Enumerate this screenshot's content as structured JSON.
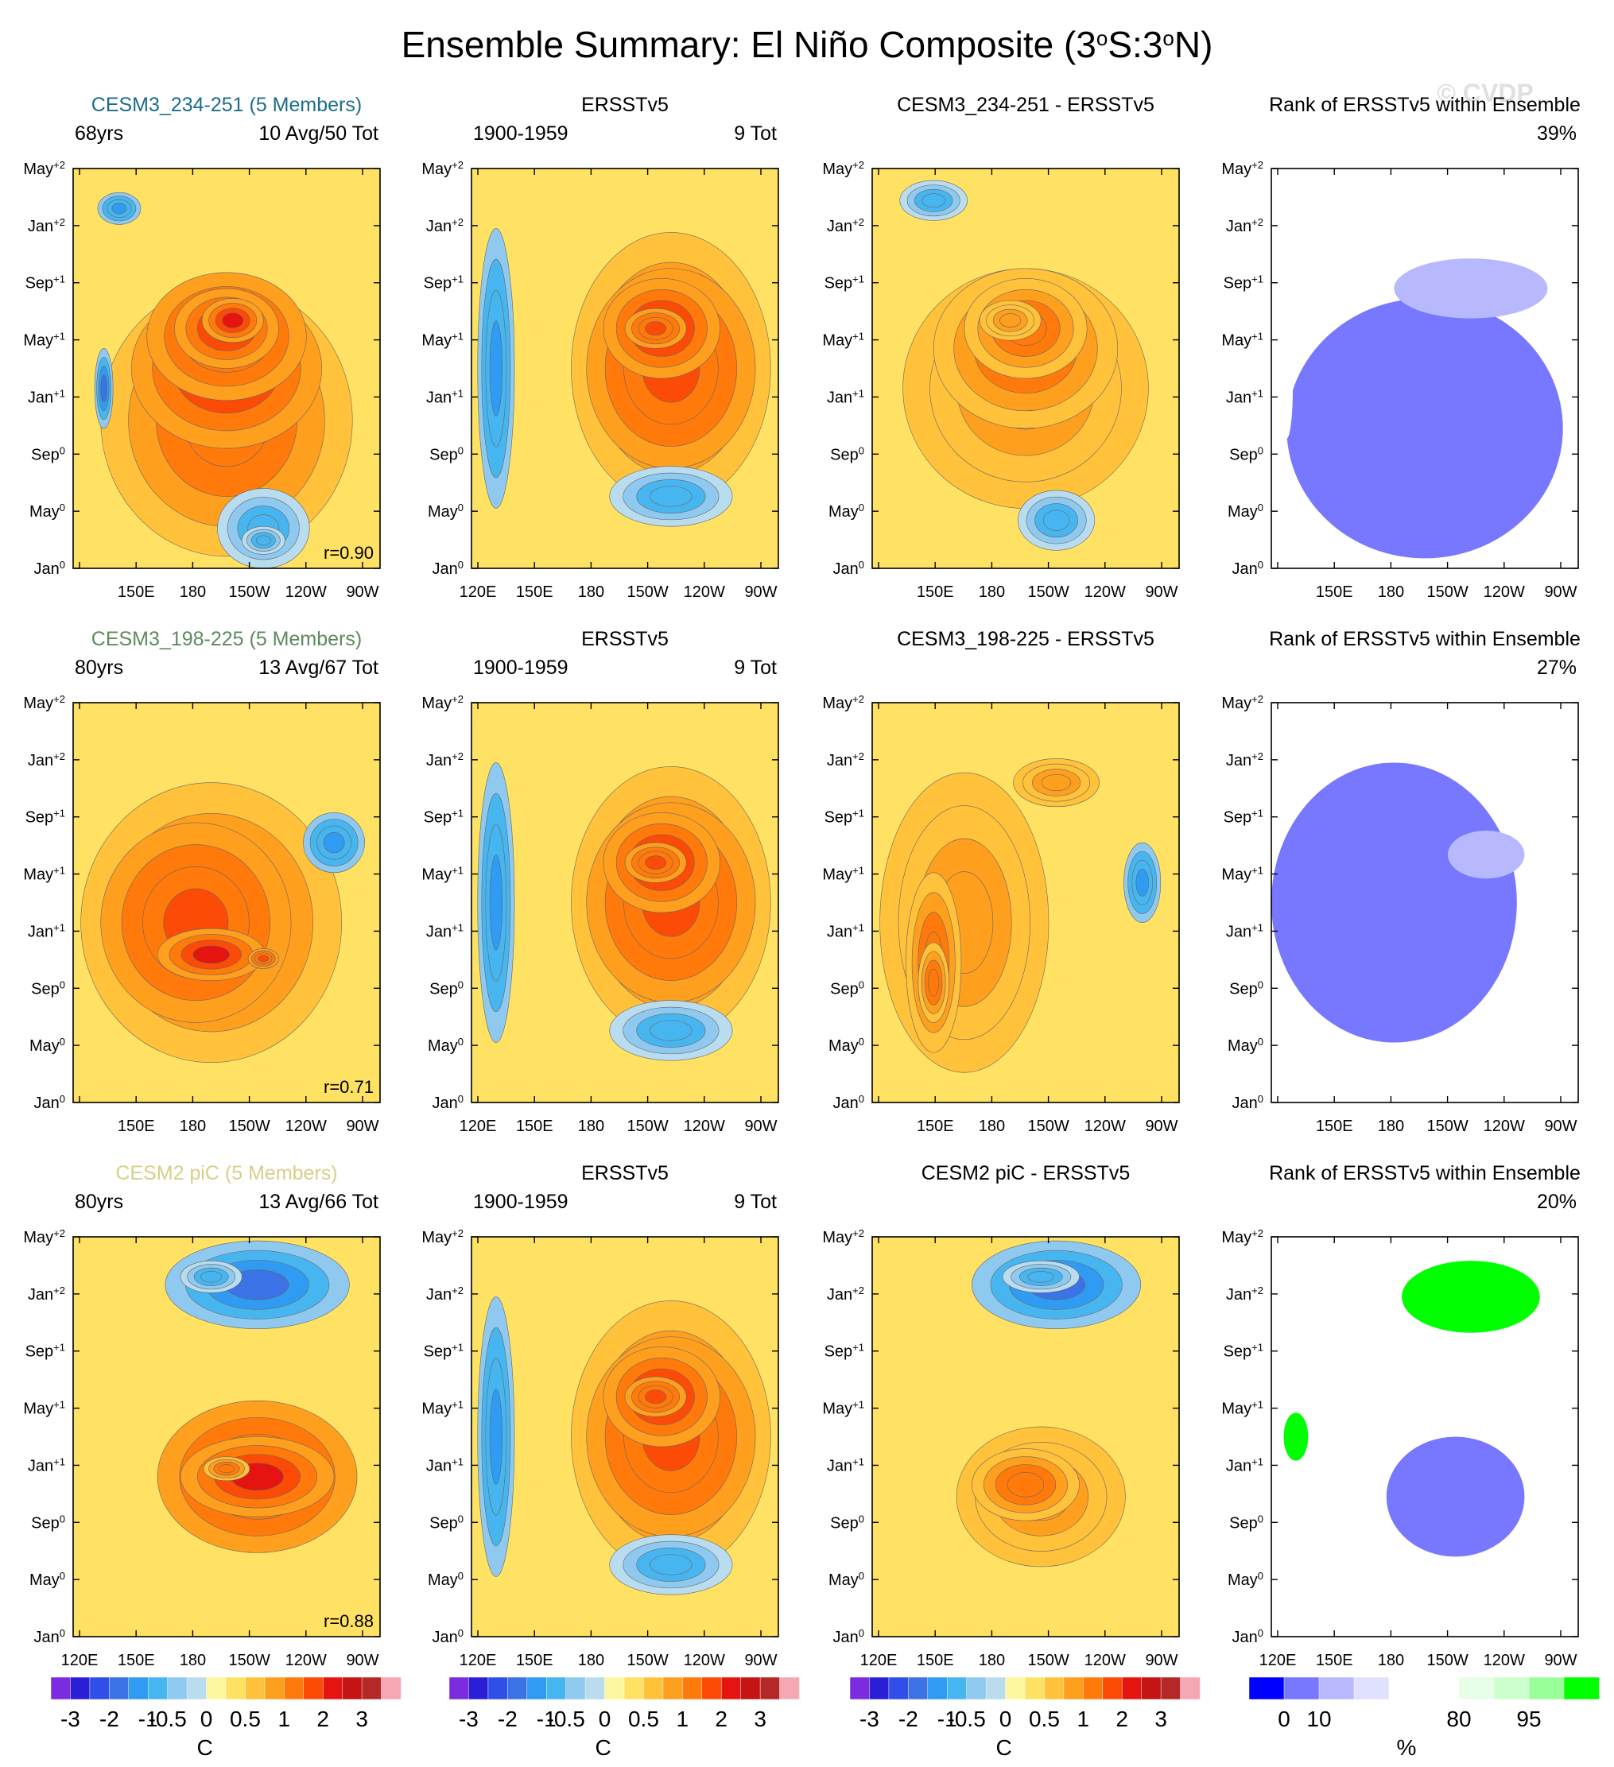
{
  "figure": {
    "title_prefix": "Ensemble Summary: El Niño Composite (3",
    "title_deg1": "o",
    "title_mid": "S:3",
    "title_deg2": "o",
    "title_suffix": "N)",
    "watermark": "© CVDP"
  },
  "colors": {
    "sst_levels": [
      "#7b2be0",
      "#2a1ed6",
      "#2f4fe8",
      "#3b72e6",
      "#2f9bf2",
      "#47b6f0",
      "#8fc9ef",
      "#b9dcee",
      "#fdf8a0",
      "#ffe264",
      "#ffc23a",
      "#ff9f1e",
      "#ff7a0a",
      "#fb4b06",
      "#e51410",
      "#c41414",
      "#b52828",
      "#f5a8b3"
    ],
    "rank_levels": [
      "#0000ff",
      "#7777ff",
      "#b8b8ff",
      "#e0e0ff",
      "#ffffff",
      "#ffffff",
      "#e6ffe6",
      "#ccffcc",
      "#99ff99",
      "#00ff00"
    ]
  },
  "chart_data": [
    {
      "type": "heatmap",
      "row": 1,
      "col": 1,
      "header_center": "CESM3_234-251 (5 Members)",
      "header_color": "#1b6d8d",
      "left_label": "68yrs",
      "right_label": "10 Avg/50 Tot",
      "annotation": "r=0.90",
      "y_ticks": [
        "May+2",
        "Jan+2",
        "Sep+1",
        "May+1",
        "Jan+1",
        "Sep0",
        "May0",
        "Jan0"
      ],
      "x_ticks": [
        "",
        "150E",
        "180",
        "150W",
        "120W",
        "90W"
      ],
      "blobs": [
        {
          "cx": 0.5,
          "cy": 0.37,
          "rx": 0.82,
          "ry": 0.68,
          "v": 0.4
        },
        {
          "cx": 0.5,
          "cy": 0.5,
          "rx": 0.62,
          "ry": 0.4,
          "v": 0.6
        },
        {
          "cx": 0.5,
          "cy": 0.58,
          "rx": 0.52,
          "ry": 0.32,
          "v": 0.5
        },
        {
          "cx": 0.5,
          "cy": 0.6,
          "rx": 0.34,
          "ry": 0.2,
          "v": 0.6
        },
        {
          "cx": 0.52,
          "cy": 0.62,
          "rx": 0.2,
          "ry": 0.11,
          "v": 0.6
        },
        {
          "cx": 0.62,
          "cy": 0.1,
          "rx": 0.3,
          "ry": 0.2,
          "v": -0.4
        },
        {
          "cx": 0.62,
          "cy": 0.07,
          "rx": 0.14,
          "ry": 0.07,
          "v": -0.4
        },
        {
          "cx": 0.1,
          "cy": 0.45,
          "rx": 0.06,
          "ry": 0.2,
          "v": -0.6
        },
        {
          "cx": 0.15,
          "cy": 0.9,
          "rx": 0.14,
          "ry": 0.08,
          "v": -0.5
        }
      ]
    },
    {
      "type": "heatmap",
      "row": 1,
      "col": 2,
      "header_center": "ERSSTv5",
      "header_color": "#000000",
      "left_label": "1900-1959",
      "right_label": "9 Tot",
      "annotation": "",
      "y_ticks": [
        "May+2",
        "Jan+2",
        "Sep+1",
        "May+1",
        "Jan+1",
        "Sep0",
        "May0",
        "Jan0"
      ],
      "x_ticks": [
        "120E",
        "150E",
        "180",
        "150W",
        "120W",
        "90W"
      ],
      "blobs": [
        {
          "cx": 0.08,
          "cy": 0.5,
          "rx": 0.12,
          "ry": 0.7,
          "v": -0.5
        },
        {
          "cx": 0.65,
          "cy": 0.5,
          "rx": 0.65,
          "ry": 0.68,
          "v": 0.4
        },
        {
          "cx": 0.65,
          "cy": 0.5,
          "rx": 0.55,
          "ry": 0.5,
          "v": 0.5
        },
        {
          "cx": 0.62,
          "cy": 0.6,
          "rx": 0.38,
          "ry": 0.25,
          "v": 0.6
        },
        {
          "cx": 0.6,
          "cy": 0.6,
          "rx": 0.2,
          "ry": 0.1,
          "v": 0.5
        },
        {
          "cx": 0.65,
          "cy": 0.18,
          "rx": 0.4,
          "ry": 0.15,
          "v": -0.4
        }
      ]
    },
    {
      "type": "heatmap",
      "row": 1,
      "col": 3,
      "header_center": "CESM3_234-251 - ERSSTv5",
      "header_color": "#000000",
      "left_label": "",
      "right_label": "",
      "annotation": "",
      "y_ticks": [
        "May+2",
        "Jan+2",
        "Sep+1",
        "May+1",
        "Jan+1",
        "Sep0",
        "May0",
        "Jan0"
      ],
      "x_ticks": [
        "",
        "150E",
        "180",
        "150W",
        "120W",
        "90W"
      ],
      "blobs": [
        {
          "cx": 0.5,
          "cy": 0.45,
          "rx": 0.8,
          "ry": 0.6,
          "v": 0.3
        },
        {
          "cx": 0.5,
          "cy": 0.55,
          "rx": 0.6,
          "ry": 0.4,
          "v": 0.4
        },
        {
          "cx": 0.5,
          "cy": 0.6,
          "rx": 0.4,
          "ry": 0.25,
          "v": 0.4
        },
        {
          "cx": 0.45,
          "cy": 0.62,
          "rx": 0.2,
          "ry": 0.1,
          "v": 0.3
        },
        {
          "cx": 0.6,
          "cy": 0.12,
          "rx": 0.25,
          "ry": 0.15,
          "v": -0.4
        },
        {
          "cx": 0.2,
          "cy": 0.92,
          "rx": 0.22,
          "ry": 0.1,
          "v": -0.4
        }
      ]
    },
    {
      "type": "heatmap",
      "row": 1,
      "col": 4,
      "header_center": "Rank of ERSSTv5 within Ensemble",
      "header_color": "#000000",
      "left_label": "",
      "right_label": "39%",
      "annotation": "",
      "y_ticks": [
        "May+2",
        "Jan+2",
        "Sep+1",
        "May+1",
        "Jan+1",
        "Sep0",
        "May0",
        "Jan0"
      ],
      "x_ticks": [
        "",
        "150E",
        "180",
        "150W",
        "120W",
        "90W"
      ],
      "rank": true,
      "blobs": [
        {
          "cx": 0.5,
          "cy": 0.35,
          "rx": 0.9,
          "ry": 0.65,
          "v": 0.1
        },
        {
          "cx": 0.05,
          "cy": 0.45,
          "rx": 0.04,
          "ry": 0.25,
          "v": 0.4
        },
        {
          "cx": 0.65,
          "cy": 0.7,
          "rx": 0.5,
          "ry": 0.15,
          "v": 0.2
        }
      ]
    },
    {
      "type": "heatmap",
      "row": 2,
      "col": 1,
      "header_center": "CESM3_198-225 (5 Members)",
      "header_color": "#5e8a5e",
      "left_label": "80yrs",
      "right_label": "13 Avg/67 Tot",
      "annotation": "r=0.71",
      "y_ticks": [
        "May+2",
        "Jan+2",
        "Sep+1",
        "May+1",
        "Jan+1",
        "Sep0",
        "May0",
        "Jan0"
      ],
      "x_ticks": [
        "",
        "150E",
        "180",
        "150W",
        "120W",
        "90W"
      ],
      "blobs": [
        {
          "cx": 0.45,
          "cy": 0.45,
          "rx": 0.85,
          "ry": 0.7,
          "v": 0.4
        },
        {
          "cx": 0.4,
          "cy": 0.45,
          "rx": 0.62,
          "ry": 0.5,
          "v": 0.5
        },
        {
          "cx": 0.45,
          "cy": 0.37,
          "rx": 0.35,
          "ry": 0.13,
          "v": 0.6
        },
        {
          "cx": 0.62,
          "cy": 0.36,
          "rx": 0.1,
          "ry": 0.05,
          "v": 0.5
        },
        {
          "cx": 0.85,
          "cy": 0.65,
          "rx": 0.2,
          "ry": 0.15,
          "v": -0.5
        }
      ]
    },
    {
      "type": "heatmap",
      "row": 2,
      "col": 2,
      "header_center": "ERSSTv5",
      "header_color": "#000000",
      "left_label": "1900-1959",
      "right_label": "9 Tot",
      "annotation": "",
      "y_ticks": [
        "May+2",
        "Jan+2",
        "Sep+1",
        "May+1",
        "Jan+1",
        "Sep0",
        "May0",
        "Jan0"
      ],
      "x_ticks": [
        "120E",
        "150E",
        "180",
        "150W",
        "120W",
        "90W"
      ],
      "blobs": [
        {
          "cx": 0.08,
          "cy": 0.5,
          "rx": 0.12,
          "ry": 0.7,
          "v": -0.5
        },
        {
          "cx": 0.65,
          "cy": 0.5,
          "rx": 0.65,
          "ry": 0.68,
          "v": 0.4
        },
        {
          "cx": 0.65,
          "cy": 0.5,
          "rx": 0.55,
          "ry": 0.5,
          "v": 0.5
        },
        {
          "cx": 0.62,
          "cy": 0.6,
          "rx": 0.38,
          "ry": 0.25,
          "v": 0.6
        },
        {
          "cx": 0.6,
          "cy": 0.6,
          "rx": 0.2,
          "ry": 0.1,
          "v": 0.5
        },
        {
          "cx": 0.65,
          "cy": 0.18,
          "rx": 0.4,
          "ry": 0.15,
          "v": -0.4
        }
      ]
    },
    {
      "type": "heatmap",
      "row": 2,
      "col": 3,
      "header_center": "CESM3_198-225 - ERSSTv5",
      "header_color": "#000000",
      "left_label": "",
      "right_label": "",
      "annotation": "",
      "y_ticks": [
        "May+2",
        "Jan+2",
        "Sep+1",
        "May+1",
        "Jan+1",
        "Sep0",
        "May0",
        "Jan0"
      ],
      "x_ticks": [
        "",
        "150E",
        "180",
        "150W",
        "120W",
        "90W"
      ],
      "blobs": [
        {
          "cx": 0.3,
          "cy": 0.45,
          "rx": 0.55,
          "ry": 0.75,
          "v": 0.3
        },
        {
          "cx": 0.2,
          "cy": 0.35,
          "rx": 0.18,
          "ry": 0.45,
          "v": 0.4
        },
        {
          "cx": 0.2,
          "cy": 0.3,
          "rx": 0.1,
          "ry": 0.2,
          "v": 0.4
        },
        {
          "cx": 0.6,
          "cy": 0.8,
          "rx": 0.28,
          "ry": 0.12,
          "v": 0.3
        },
        {
          "cx": 0.88,
          "cy": 0.55,
          "rx": 0.12,
          "ry": 0.2,
          "v": -0.5
        }
      ]
    },
    {
      "type": "heatmap",
      "row": 2,
      "col": 4,
      "header_center": "Rank of ERSSTv5 within Ensemble",
      "header_color": "#000000",
      "left_label": "",
      "right_label": "27%",
      "annotation": "",
      "y_ticks": [
        "May+2",
        "Jan+2",
        "Sep+1",
        "May+1",
        "Jan+1",
        "Sep0",
        "May0",
        "Jan0"
      ],
      "x_ticks": [
        "",
        "150E",
        "180",
        "150W",
        "120W",
        "90W"
      ],
      "rank": true,
      "blobs": [
        {
          "cx": 0.4,
          "cy": 0.5,
          "rx": 0.8,
          "ry": 0.7,
          "v": 0.1
        },
        {
          "cx": 0.9,
          "cy": 0.45,
          "rx": 0.1,
          "ry": 0.15,
          "v": 0.4
        },
        {
          "cx": 0.7,
          "cy": 0.62,
          "rx": 0.25,
          "ry": 0.12,
          "v": 0.2
        }
      ]
    },
    {
      "type": "heatmap",
      "row": 3,
      "col": 1,
      "header_center": "CESM2 piC (5 Members)",
      "header_color": "#d8cf8a",
      "left_label": "80yrs",
      "right_label": "13 Avg/66 Tot",
      "annotation": "r=0.88",
      "y_ticks": [
        "May+2",
        "Jan+2",
        "Sep+1",
        "May+1",
        "Jan+1",
        "Sep0",
        "May0",
        "Jan0"
      ],
      "x_ticks": [
        "120E",
        "150E",
        "180",
        "150W",
        "120W",
        "90W"
      ],
      "blobs": [
        {
          "cx": 0.6,
          "cy": 0.4,
          "rx": 0.65,
          "ry": 0.38,
          "v": 0.5
        },
        {
          "cx": 0.6,
          "cy": 0.4,
          "rx": 0.5,
          "ry": 0.2,
          "v": 0.6
        },
        {
          "cx": 0.5,
          "cy": 0.42,
          "rx": 0.15,
          "ry": 0.06,
          "v": 0.4
        },
        {
          "cx": 0.6,
          "cy": 0.88,
          "rx": 0.6,
          "ry": 0.22,
          "v": -0.6
        },
        {
          "cx": 0.45,
          "cy": 0.9,
          "rx": 0.2,
          "ry": 0.08,
          "v": -0.4
        }
      ]
    },
    {
      "type": "heatmap",
      "row": 3,
      "col": 2,
      "header_center": "ERSSTv5",
      "header_color": "#000000",
      "left_label": "1900-1959",
      "right_label": "9 Tot",
      "annotation": "",
      "y_ticks": [
        "May+2",
        "Jan+2",
        "Sep+1",
        "May+1",
        "Jan+1",
        "Sep0",
        "May0",
        "Jan0"
      ],
      "x_ticks": [
        "120E",
        "150E",
        "180",
        "150W",
        "120W",
        "90W"
      ],
      "blobs": [
        {
          "cx": 0.08,
          "cy": 0.5,
          "rx": 0.12,
          "ry": 0.7,
          "v": -0.5
        },
        {
          "cx": 0.65,
          "cy": 0.5,
          "rx": 0.65,
          "ry": 0.68,
          "v": 0.4
        },
        {
          "cx": 0.65,
          "cy": 0.5,
          "rx": 0.55,
          "ry": 0.5,
          "v": 0.5
        },
        {
          "cx": 0.62,
          "cy": 0.6,
          "rx": 0.38,
          "ry": 0.25,
          "v": 0.6
        },
        {
          "cx": 0.6,
          "cy": 0.6,
          "rx": 0.2,
          "ry": 0.1,
          "v": 0.5
        },
        {
          "cx": 0.65,
          "cy": 0.18,
          "rx": 0.4,
          "ry": 0.15,
          "v": -0.4
        }
      ]
    },
    {
      "type": "heatmap",
      "row": 3,
      "col": 3,
      "header_center": "CESM2 piC - ERSSTv5",
      "header_color": "#000000",
      "left_label": "",
      "right_label": "",
      "annotation": "",
      "y_ticks": [
        "May+2",
        "Jan+2",
        "Sep+1",
        "May+1",
        "Jan+1",
        "Sep0",
        "May0",
        "Jan0"
      ],
      "x_ticks": [
        "120E",
        "150E",
        "180",
        "150W",
        "120W",
        "90W"
      ],
      "blobs": [
        {
          "cx": 0.55,
          "cy": 0.35,
          "rx": 0.55,
          "ry": 0.35,
          "v": 0.3
        },
        {
          "cx": 0.5,
          "cy": 0.38,
          "rx": 0.35,
          "ry": 0.18,
          "v": 0.4
        },
        {
          "cx": 0.6,
          "cy": 0.88,
          "rx": 0.55,
          "ry": 0.22,
          "v": -0.6
        },
        {
          "cx": 0.55,
          "cy": 0.9,
          "rx": 0.25,
          "ry": 0.08,
          "v": -0.4
        }
      ]
    },
    {
      "type": "heatmap",
      "row": 3,
      "col": 4,
      "header_center": "Rank of ERSSTv5 within Ensemble",
      "header_color": "#000000",
      "left_label": "",
      "right_label": "20%",
      "annotation": "",
      "y_ticks": [
        "May+2",
        "Jan+2",
        "Sep+1",
        "May+1",
        "Jan+1",
        "Sep0",
        "May0",
        "Jan0"
      ],
      "x_ticks": [
        "120E",
        "150E",
        "180",
        "150W",
        "120W",
        "90W"
      ],
      "rank": true,
      "blobs": [
        {
          "cx": 0.6,
          "cy": 0.35,
          "rx": 0.45,
          "ry": 0.3,
          "v": 0.1
        },
        {
          "cx": 0.65,
          "cy": 0.85,
          "rx": 0.45,
          "ry": 0.18,
          "v": 0.9
        },
        {
          "cx": 0.08,
          "cy": 0.5,
          "rx": 0.08,
          "ry": 0.12,
          "v": 0.9
        }
      ]
    }
  ],
  "colorbars": [
    {
      "col": 1,
      "labels": [
        "-3",
        "-2",
        "-1",
        "-0.5",
        "0",
        "0.5",
        "1",
        "2",
        "3"
      ],
      "unit": "C"
    },
    {
      "col": 2,
      "labels": [
        "-3",
        "-2",
        "-1",
        "-0.5",
        "0",
        "0.5",
        "1",
        "2",
        "3"
      ],
      "unit": "C"
    },
    {
      "col": 3,
      "labels": [
        "-3",
        "-2",
        "-1",
        "-0.5",
        "0",
        "0.5",
        "1",
        "2",
        "3"
      ],
      "unit": "C"
    },
    {
      "col": 4,
      "labels": [
        "0",
        "10",
        "80",
        "95"
      ],
      "unit": "%"
    }
  ]
}
